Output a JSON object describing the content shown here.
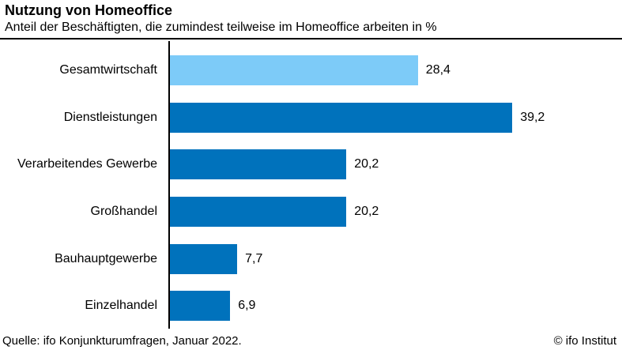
{
  "header": {
    "title": "Nutzung von Homeoffice",
    "subtitle": "Anteil der Beschäftigten, die zumindest teilweise im Homeoffice arbeiten in %"
  },
  "chart_data": {
    "type": "bar",
    "orientation": "horizontal",
    "title": "Nutzung von Homeoffice",
    "subtitle": "Anteil der Beschäftigten, die zumindest teilweise im Homeoffice arbeiten in %",
    "categories": [
      "Gesamtwirtschaft",
      "Dienstleistungen",
      "Verarbeitendes Gewerbe",
      "Großhandel",
      "Bauhauptgewerbe",
      "Einzelhandel"
    ],
    "values": [
      28.4,
      39.2,
      20.2,
      20.2,
      7.7,
      6.9
    ],
    "value_labels": [
      "28,4",
      "39,2",
      "20,2",
      "20,2",
      "7,7",
      "6,9"
    ],
    "bar_colors": [
      "#7DCBF8",
      "#0072BC",
      "#0072BC",
      "#0072BC",
      "#0072BC",
      "#0072BC"
    ],
    "xlabel": "",
    "ylabel": "",
    "xlim": [
      0,
      45
    ],
    "grid": false,
    "legend": false,
    "value_label_position": "outside-end"
  },
  "colors": {
    "highlight_bar": "#7DCBF8",
    "default_bar": "#0072BC",
    "axis": "#000000",
    "text": "#000000",
    "background": "#ffffff"
  },
  "footer": {
    "source": "Quelle: ifo Konjunkturumfragen, Januar 2022.",
    "copyright": "© ifo Institut"
  }
}
